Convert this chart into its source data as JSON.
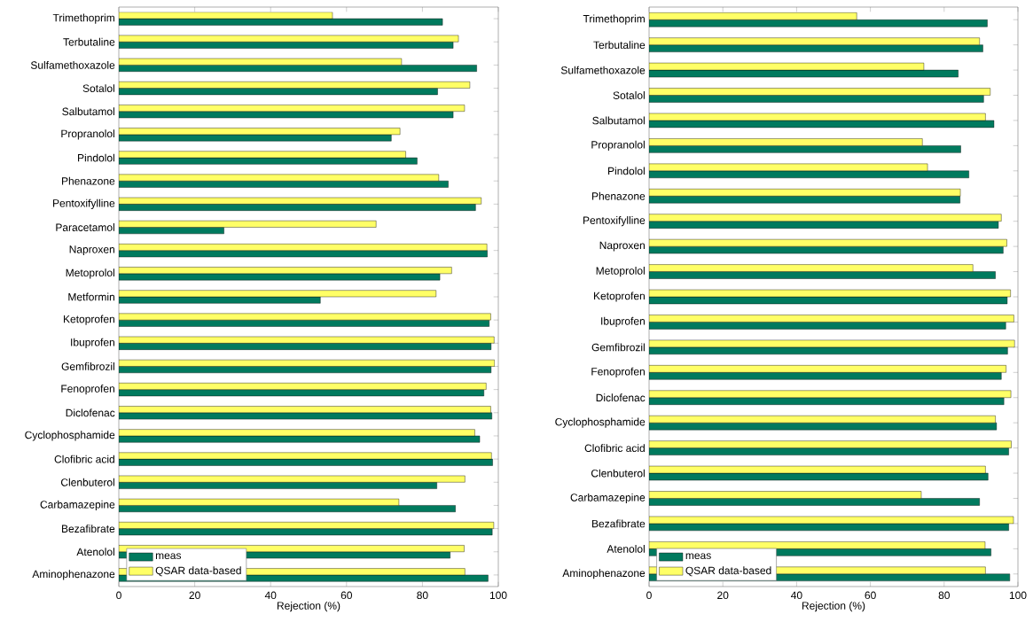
{
  "chart_data": [
    {
      "type": "bar",
      "orientation": "horizontal",
      "xlabel": "Rejection (%)",
      "xlim": [
        0,
        100
      ],
      "xticks": [
        0,
        20,
        40,
        60,
        80,
        100
      ],
      "legend": "bottom left",
      "categories": [
        "Trimethoprim",
        "Terbutaline",
        "Sulfamethoxazole",
        "Sotalol",
        "Salbutamol",
        "Propranolol",
        "Pindolol",
        "Phenazone",
        "Pentoxifylline",
        "Paracetamol",
        "Naproxen",
        "Metoprolol",
        "Metformin",
        "Ketoprofen",
        "Ibuprofen",
        "Gemfibrozil",
        "Fenoprofen",
        "Diclofenac",
        "Cyclophosphamide",
        "Clofibric acid",
        "Clenbuterol",
        "Carbamazepine",
        "Bezafibrate",
        "Atenolol",
        "Aminophenazone"
      ],
      "series": [
        {
          "name": "meas",
          "color": "#007a5e",
          "values": [
            85.3,
            88.1,
            94.3,
            84.0,
            88.1,
            71.8,
            78.6,
            86.8,
            94.0,
            27.7,
            97.1,
            84.6,
            53.1,
            97.6,
            98.1,
            98.1,
            96.2,
            98.3,
            95.1,
            98.5,
            83.8,
            88.7,
            98.4,
            87.3,
            97.3
          ]
        },
        {
          "name": "QSAR data-based",
          "color": "#ffff66",
          "values": [
            56.3,
            89.5,
            74.5,
            92.5,
            91.1,
            74.1,
            75.6,
            84.3,
            95.5,
            67.8,
            97.0,
            87.7,
            83.6,
            98.0,
            98.9,
            99.0,
            96.8,
            98.0,
            93.8,
            98.2,
            91.2,
            73.8,
            98.8,
            91.0,
            91.2
          ]
        }
      ]
    },
    {
      "type": "bar",
      "orientation": "horizontal",
      "xlabel": "Rejection (%)",
      "xlim": [
        0,
        100
      ],
      "xticks": [
        0,
        20,
        40,
        60,
        80,
        100
      ],
      "legend": "bottom left",
      "categories": [
        "Trimethoprim",
        "Terbutaline",
        "Sulfamethoxazole",
        "Sotalol",
        "Salbutamol",
        "Propranolol",
        "Pindolol",
        "Phenazone",
        "Pentoxifylline",
        "Naproxen",
        "Metoprolol",
        "Ketoprofen",
        "Ibuprofen",
        "Gemfibrozil",
        "Fenoprofen",
        "Diclofenac",
        "Cyclophosphamide",
        "Clofibric acid",
        "Clenbuterol",
        "Carbamazepine",
        "Bezafibrate",
        "Atenolol",
        "Aminophenazone"
      ],
      "series": [
        {
          "name": "meas",
          "color": "#007a5e",
          "values": [
            91.7,
            90.5,
            83.8,
            90.7,
            93.5,
            84.5,
            86.7,
            84.3,
            94.7,
            96.0,
            93.9,
            97.1,
            96.7,
            97.2,
            95.5,
            96.2,
            94.2,
            97.5,
            91.9,
            89.6,
            97.5,
            92.7,
            97.8
          ]
        },
        {
          "name": "QSAR data-based",
          "color": "#ffff66",
          "values": [
            56.3,
            89.6,
            74.5,
            92.5,
            91.2,
            74.1,
            75.5,
            84.4,
            95.5,
            97.0,
            87.8,
            98.0,
            98.9,
            99.1,
            96.8,
            98.1,
            93.9,
            98.2,
            91.2,
            73.8,
            98.8,
            91.1,
            91.2
          ]
        }
      ]
    }
  ]
}
